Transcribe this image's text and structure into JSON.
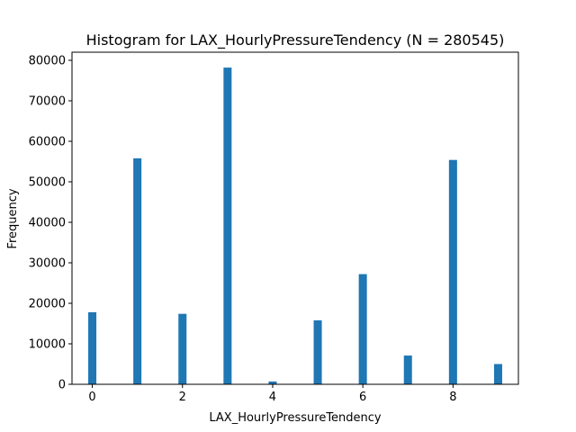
{
  "chart_data": {
    "type": "bar",
    "title": "Histogram for LAX_HourlyPressureTendency (N = 280545)",
    "xlabel": "LAX_HourlyPressureTendency",
    "ylabel": "Frequency",
    "xlim": [
      -0.45,
      9.45
    ],
    "ylim": [
      0,
      82000
    ],
    "xticks": [
      0,
      2,
      4,
      6,
      8
    ],
    "yticks": [
      0,
      10000,
      20000,
      30000,
      40000,
      50000,
      60000,
      70000,
      80000
    ],
    "bar_width": 0.18,
    "bar_color": "#1f77b4",
    "grid": false,
    "legend": "none",
    "x": [
      0,
      1,
      2,
      3,
      4,
      5,
      6,
      7,
      8,
      9
    ],
    "values": [
      17800,
      55800,
      17400,
      78200,
      700,
      15800,
      27200,
      7100,
      55400,
      5000
    ]
  }
}
